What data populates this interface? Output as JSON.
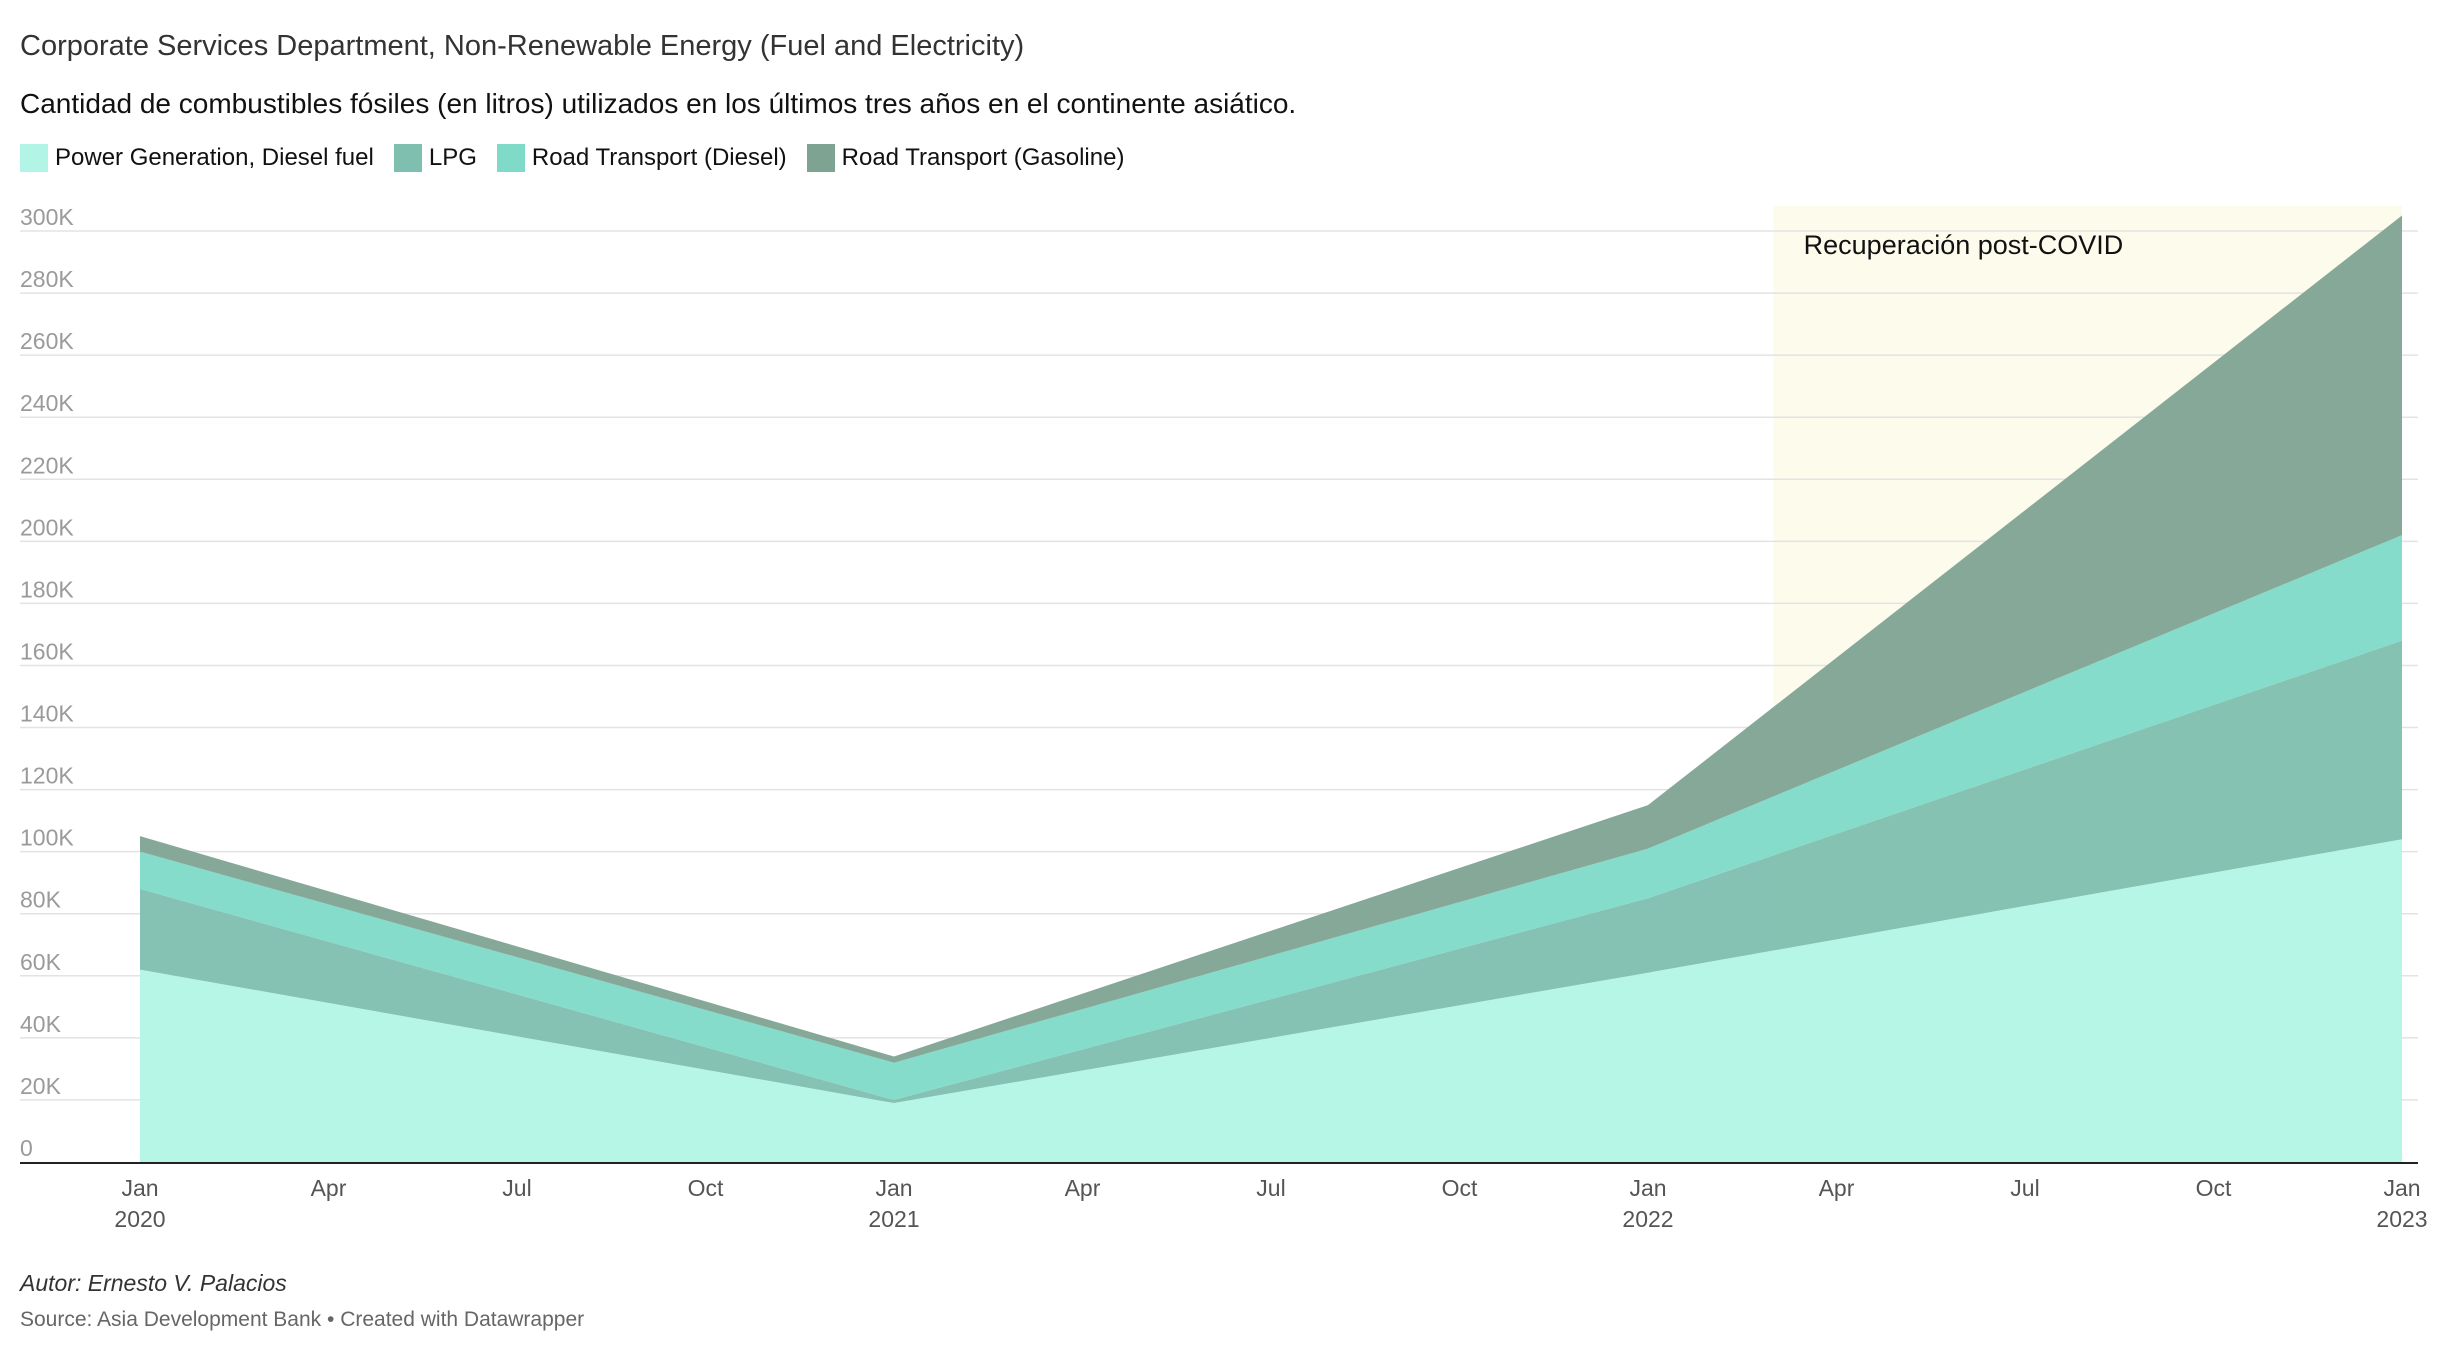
{
  "header": {
    "title": "Corporate Services Department, Non-Renewable Energy (Fuel and Electricity)",
    "subtitle": "Cantidad de combustibles fósiles (en litros) utilizados en los últimos tres años en el continente asiático."
  },
  "footer": {
    "notes": "Autor: Ernesto V. Palacios",
    "source": "Source: Asia Development Bank • Created with Datawrapper"
  },
  "chart_data": {
    "type": "area",
    "stacked": true,
    "x": [
      "2020-01",
      "2021-01",
      "2022-01",
      "2023-01"
    ],
    "series": [
      {
        "name": "Power Generation, Diesel fuel",
        "color": "#b2f5e6",
        "values": [
          62000,
          19000,
          61000,
          104000
        ]
      },
      {
        "name": "LPG",
        "color": "#7fbfaf",
        "values": [
          26000,
          1000,
          24000,
          64000
        ]
      },
      {
        "name": "Road Transport (Diesel)",
        "color": "#7fdac8",
        "values": [
          12000,
          12000,
          16000,
          34000
        ]
      },
      {
        "name": "Road Transport (Gasoline)",
        "color": "#7fa393",
        "values": [
          5000,
          2000,
          14000,
          103000
        ]
      }
    ],
    "ylim": [
      0,
      300000
    ],
    "y_ticks": [
      {
        "value": 0,
        "label": "0"
      },
      {
        "value": 20000,
        "label": "20K"
      },
      {
        "value": 40000,
        "label": "40K"
      },
      {
        "value": 60000,
        "label": "60K"
      },
      {
        "value": 80000,
        "label": "80K"
      },
      {
        "value": 100000,
        "label": "100K"
      },
      {
        "value": 120000,
        "label": "120K"
      },
      {
        "value": 140000,
        "label": "140K"
      },
      {
        "value": 160000,
        "label": "160K"
      },
      {
        "value": 180000,
        "label": "180K"
      },
      {
        "value": 200000,
        "label": "200K"
      },
      {
        "value": 220000,
        "label": "220K"
      },
      {
        "value": 240000,
        "label": "240K"
      },
      {
        "value": 260000,
        "label": "260K"
      },
      {
        "value": 280000,
        "label": "280K"
      },
      {
        "value": 300000,
        "label": "300K"
      }
    ],
    "x_ticks": [
      {
        "date": "2020-01",
        "label": "Jan",
        "year": "2020"
      },
      {
        "date": "2020-04",
        "label": "Apr",
        "year": ""
      },
      {
        "date": "2020-07",
        "label": "Jul",
        "year": ""
      },
      {
        "date": "2020-10",
        "label": "Oct",
        "year": ""
      },
      {
        "date": "2021-01",
        "label": "Jan",
        "year": "2021"
      },
      {
        "date": "2021-04",
        "label": "Apr",
        "year": ""
      },
      {
        "date": "2021-07",
        "label": "Jul",
        "year": ""
      },
      {
        "date": "2021-10",
        "label": "Oct",
        "year": ""
      },
      {
        "date": "2022-01",
        "label": "Jan",
        "year": "2022"
      },
      {
        "date": "2022-04",
        "label": "Apr",
        "year": ""
      },
      {
        "date": "2022-07",
        "label": "Jul",
        "year": ""
      },
      {
        "date": "2022-10",
        "label": "Oct",
        "year": ""
      },
      {
        "date": "2023-01",
        "label": "Jan",
        "year": "2023"
      }
    ],
    "highlight_range": {
      "from": "2022-03",
      "to": "2023-01",
      "label": "Recuperación post-COVID",
      "color": "#fdfbeb"
    },
    "grid": true,
    "legend_position": "top-left"
  }
}
